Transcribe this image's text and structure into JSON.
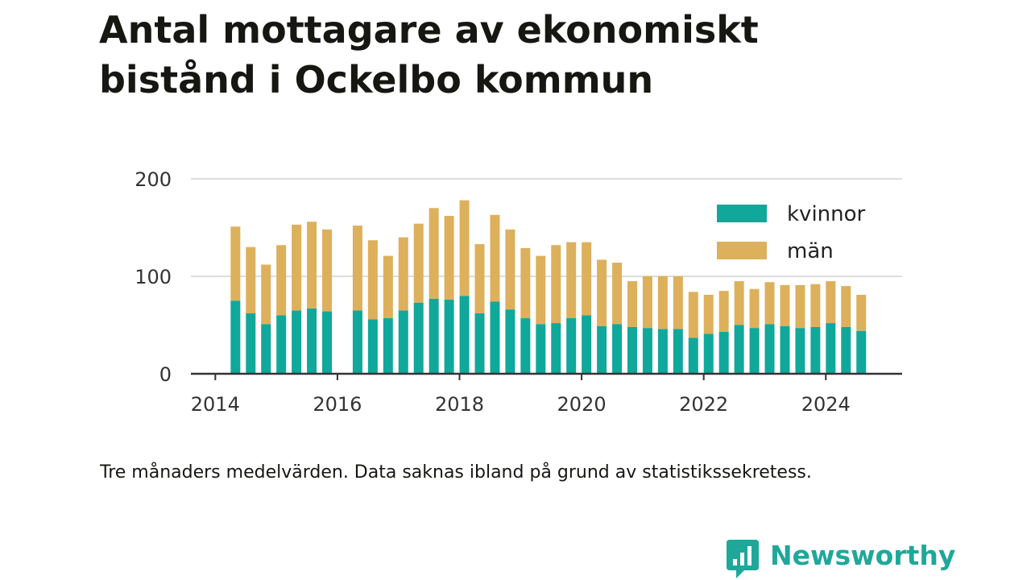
{
  "title": "Antal mottagare av ekonomiskt bistånd i Ockelbo kommun",
  "note": "Tre månaders medelvärden. Data saknas ibland på grund av statistikssekretess.",
  "brand": {
    "name": "Newsworthy",
    "icon": "newsworthy-chart-bubble-icon"
  },
  "colors": {
    "kvinnor": "#0fa89b",
    "man": "#ddb05c",
    "grid": "#dddddd",
    "axis": "#333333",
    "brand": "#1fa89a"
  },
  "chart_data": {
    "type": "bar",
    "stacked": true,
    "x_unit": "year (quarter midpoints)",
    "x_ticks": [
      2014,
      2016,
      2018,
      2020,
      2022,
      2024
    ],
    "x_tick_labels": [
      "2014",
      "2016",
      "2018",
      "2020",
      "2022",
      "2024"
    ],
    "xlim": [
      2013.6,
      2025.25
    ],
    "y_ticks": [
      0,
      100,
      200
    ],
    "y_tick_labels": [
      "0",
      "100",
      "200"
    ],
    "ylim": [
      0,
      200
    ],
    "grid": true,
    "legend_position": "top-right",
    "x": [
      2014.33,
      2014.58,
      2014.83,
      2015.08,
      2015.33,
      2015.58,
      2015.83,
      2016.33,
      2016.58,
      2016.83,
      2017.08,
      2017.33,
      2017.58,
      2017.83,
      2018.08,
      2018.33,
      2018.58,
      2018.83,
      2019.08,
      2019.33,
      2019.58,
      2019.83,
      2020.08,
      2020.33,
      2020.58,
      2020.83,
      2021.08,
      2021.33,
      2021.58,
      2021.83,
      2022.08,
      2022.33,
      2022.58,
      2022.83,
      2023.08,
      2023.33,
      2023.58,
      2023.83,
      2024.08,
      2024.33,
      2024.58
    ],
    "series": [
      {
        "name": "kvinnor",
        "values": [
          75,
          62,
          51,
          60,
          65,
          67,
          64,
          65,
          56,
          57,
          65,
          73,
          77,
          76,
          80,
          62,
          74,
          66,
          57,
          51,
          52,
          57,
          60,
          49,
          51,
          48,
          47,
          46,
          46,
          37,
          41,
          43,
          50,
          47,
          51,
          49,
          47,
          48,
          52,
          48,
          44
        ]
      },
      {
        "name": "män",
        "values": [
          76,
          68,
          61,
          72,
          88,
          89,
          84,
          87,
          81,
          64,
          75,
          81,
          93,
          86,
          98,
          71,
          89,
          82,
          72,
          70,
          80,
          78,
          75,
          68,
          63,
          47,
          53,
          54,
          54,
          47,
          40,
          42,
          45,
          40,
          43,
          42,
          44,
          44,
          43,
          42,
          37
        ]
      }
    ]
  }
}
